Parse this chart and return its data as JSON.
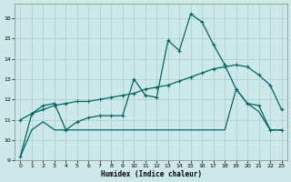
{
  "xlabel": "Humidex (Indice chaleur)",
  "bg_color": "#cce8e8",
  "grid_color": "#aacccc",
  "line_color": "#006666",
  "xlim": [
    -0.5,
    23.5
  ],
  "ylim": [
    9,
    16.7
  ],
  "xticks": [
    0,
    1,
    2,
    3,
    4,
    5,
    6,
    7,
    8,
    9,
    10,
    11,
    12,
    13,
    14,
    15,
    16,
    17,
    18,
    19,
    20,
    21,
    22,
    23
  ],
  "yticks": [
    9,
    10,
    11,
    12,
    13,
    14,
    15,
    16
  ],
  "c1_x": [
    0,
    1,
    2,
    3,
    4,
    5,
    6,
    7,
    8,
    9,
    10,
    11,
    12,
    13,
    14,
    15,
    16,
    17,
    18,
    19,
    20,
    21,
    22,
    23
  ],
  "c1_y": [
    9.2,
    11.3,
    11.7,
    11.8,
    10.5,
    10.9,
    11.1,
    11.2,
    11.2,
    11.2,
    13.0,
    12.2,
    12.1,
    14.9,
    14.4,
    16.2,
    15.8,
    14.7,
    13.7,
    12.5,
    11.8,
    11.7,
    10.5,
    10.5
  ],
  "c2_x": [
    0,
    1,
    2,
    3,
    4,
    5,
    6,
    7,
    8,
    9,
    10,
    11,
    12,
    13,
    14,
    15,
    16,
    17,
    18,
    19,
    20,
    21,
    22,
    23
  ],
  "c2_y": [
    11.0,
    11.3,
    11.5,
    11.7,
    11.8,
    11.9,
    11.9,
    12.0,
    12.1,
    12.2,
    12.3,
    12.5,
    12.6,
    12.7,
    12.9,
    13.1,
    13.3,
    13.5,
    13.6,
    13.7,
    13.6,
    13.2,
    12.7,
    11.5
  ],
  "c3_x": [
    0,
    1,
    2,
    3,
    4,
    5,
    6,
    7,
    8,
    9,
    10,
    11,
    12,
    13,
    14,
    15,
    16,
    17,
    18,
    19,
    20,
    21,
    22,
    23
  ],
  "c3_y": [
    9.2,
    10.5,
    10.9,
    10.5,
    10.5,
    10.5,
    10.5,
    10.5,
    10.5,
    10.5,
    10.5,
    10.5,
    10.5,
    10.5,
    10.5,
    10.5,
    10.5,
    10.5,
    10.5,
    12.5,
    11.8,
    11.4,
    10.5,
    10.5
  ]
}
